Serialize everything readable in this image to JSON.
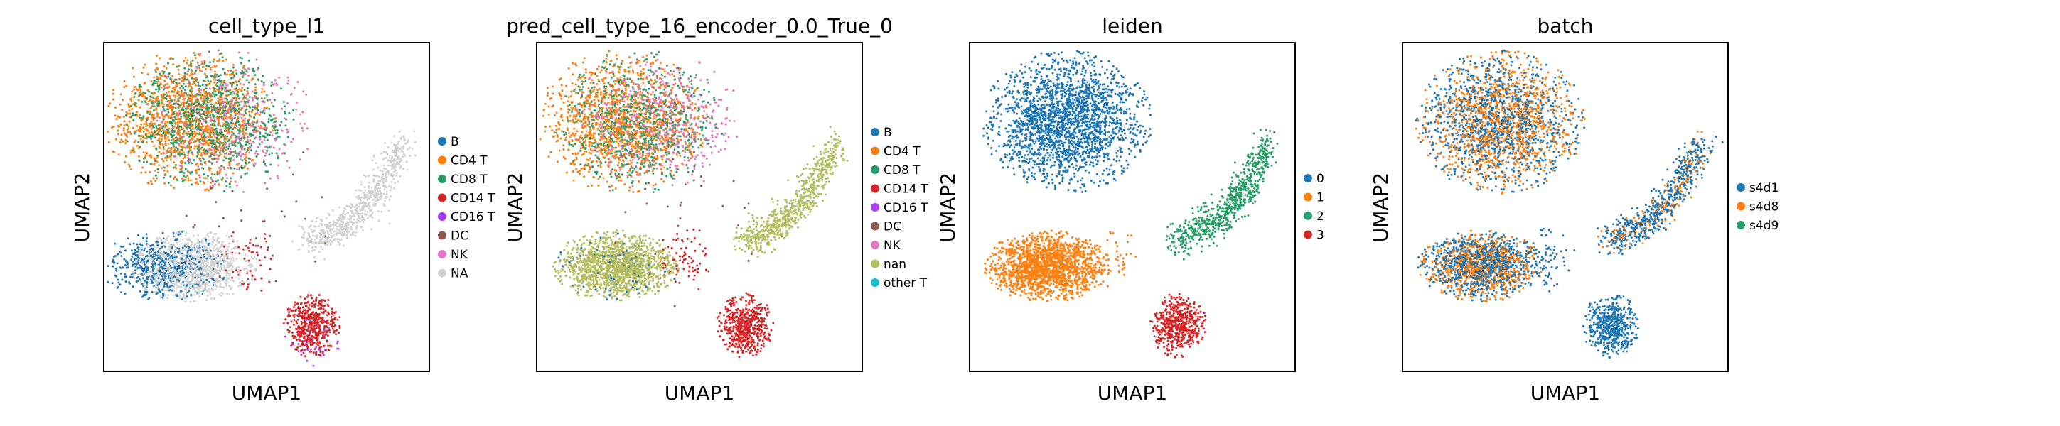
{
  "chart_data": [
    {
      "type": "scatter",
      "title": "cell_type_l1",
      "xlabel": "UMAP1",
      "ylabel": "UMAP2",
      "ticks": "none",
      "legend": {
        "placement": "right",
        "entries": [
          {
            "label": "B",
            "color": "#1f77b4"
          },
          {
            "label": "CD4 T",
            "color": "#ff7f0e"
          },
          {
            "label": "CD8 T",
            "color": "#279e68"
          },
          {
            "label": "CD14 T",
            "color": "#d62728"
          },
          {
            "label": "CD16 T",
            "color": "#aa40fc"
          },
          {
            "label": "DC",
            "color": "#8c564b"
          },
          {
            "label": "NK",
            "color": "#e377c2"
          },
          {
            "label": "NA",
            "color": "#d3d3d3"
          }
        ]
      },
      "series": [
        {
          "cat": 1,
          "parts": [
            {
              "region": "top",
              "w": 0.55,
              "xs": -0.3
            }
          ]
        },
        {
          "cat": 2,
          "parts": [
            {
              "region": "top",
              "w": 0.45,
              "xs": 0.2
            }
          ]
        },
        {
          "cat": 6,
          "parts": [
            {
              "region": "top",
              "w": 0.18,
              "xs": 0.7
            }
          ]
        },
        {
          "cat": 0,
          "parts": [
            {
              "region": "bottomleft",
              "w": 0.35,
              "xs": -0.6
            }
          ]
        },
        {
          "cat": 7,
          "parts": [
            {
              "region": "bottomleft",
              "w": 0.65,
              "xs": 0.4
            },
            {
              "region": "rightarm",
              "w": 1.0
            }
          ]
        },
        {
          "cat": 3,
          "parts": [
            {
              "region": "bottomright",
              "w": 0.9
            },
            {
              "region": "bridge",
              "w": 0.4
            }
          ]
        },
        {
          "cat": 4,
          "parts": [
            {
              "region": "bottomright",
              "w": 0.08,
              "ys": 1.0
            }
          ]
        },
        {
          "cat": 5,
          "parts": [
            {
              "region": "scatter",
              "w": 0.3
            }
          ]
        }
      ]
    },
    {
      "type": "scatter",
      "title": "pred_cell_type_16_encoder_0.0_True_0",
      "xlabel": "UMAP1",
      "ylabel": "UMAP2",
      "ticks": "none",
      "legend": {
        "placement": "right",
        "entries": [
          {
            "label": "B",
            "color": "#1f77b4"
          },
          {
            "label": "CD4 T",
            "color": "#ff7f0e"
          },
          {
            "label": "CD8 T",
            "color": "#279e68"
          },
          {
            "label": "CD14 T",
            "color": "#d62728"
          },
          {
            "label": "CD16 T",
            "color": "#aa40fc"
          },
          {
            "label": "DC",
            "color": "#8c564b"
          },
          {
            "label": "NK",
            "color": "#e377c2"
          },
          {
            "label": "nan",
            "color": "#b5bd61"
          },
          {
            "label": "other T",
            "color": "#17becf"
          }
        ]
      },
      "series": [
        {
          "cat": 1,
          "parts": [
            {
              "region": "top",
              "w": 0.55,
              "xs": -0.3
            }
          ]
        },
        {
          "cat": 2,
          "parts": [
            {
              "region": "top",
              "w": 0.35,
              "xs": 0.1
            }
          ]
        },
        {
          "cat": 6,
          "parts": [
            {
              "region": "top",
              "w": 0.25,
              "xs": 0.6
            }
          ]
        },
        {
          "cat": 7,
          "parts": [
            {
              "region": "bottomleft",
              "w": 0.9
            },
            {
              "region": "rightarm",
              "w": 1.0
            }
          ]
        },
        {
          "cat": 0,
          "parts": [
            {
              "region": "bottomleft",
              "w": 0.05
            }
          ]
        },
        {
          "cat": 3,
          "parts": [
            {
              "region": "bottomright",
              "w": 1.0
            },
            {
              "region": "bridge",
              "w": 0.5
            }
          ]
        },
        {
          "cat": 5,
          "parts": [
            {
              "region": "scatter",
              "w": 0.3
            }
          ]
        }
      ]
    },
    {
      "type": "scatter",
      "title": "leiden",
      "xlabel": "UMAP1",
      "ylabel": "UMAP2",
      "ticks": "none",
      "legend": {
        "placement": "right",
        "entries": [
          {
            "label": "0",
            "color": "#1f77b4"
          },
          {
            "label": "1",
            "color": "#ff7f0e"
          },
          {
            "label": "2",
            "color": "#279e68"
          },
          {
            "label": "3",
            "color": "#d62728"
          }
        ]
      },
      "series": [
        {
          "cat": 0,
          "parts": [
            {
              "region": "top",
              "w": 1.0
            }
          ]
        },
        {
          "cat": 1,
          "parts": [
            {
              "region": "bottomleft",
              "w": 1.0
            },
            {
              "region": "bridge",
              "w": 0.3
            }
          ]
        },
        {
          "cat": 2,
          "parts": [
            {
              "region": "rightarm",
              "w": 1.0
            }
          ]
        },
        {
          "cat": 3,
          "parts": [
            {
              "region": "bottomright",
              "w": 1.0
            }
          ]
        }
      ]
    },
    {
      "type": "scatter",
      "title": "batch",
      "xlabel": "UMAP1",
      "ylabel": "UMAP2",
      "ticks": "none",
      "legend": {
        "placement": "right",
        "entries": [
          {
            "label": "s4d1",
            "color": "#1f77b4"
          },
          {
            "label": "s4d8",
            "color": "#ff7f0e"
          },
          {
            "label": "s4d9",
            "color": "#279e68"
          }
        ]
      },
      "series": [
        {
          "cat": 0,
          "parts": [
            {
              "region": "top",
              "w": 0.5
            },
            {
              "region": "bottomleft",
              "w": 0.55
            },
            {
              "region": "rightarm",
              "w": 0.75
            },
            {
              "region": "bottomright",
              "w": 1.0
            },
            {
              "region": "bridge",
              "w": 0.5
            }
          ]
        },
        {
          "cat": 1,
          "parts": [
            {
              "region": "top",
              "w": 0.5
            },
            {
              "region": "bottomleft",
              "w": 0.45
            },
            {
              "region": "rightarm",
              "w": 0.25
            }
          ]
        }
      ]
    }
  ]
}
